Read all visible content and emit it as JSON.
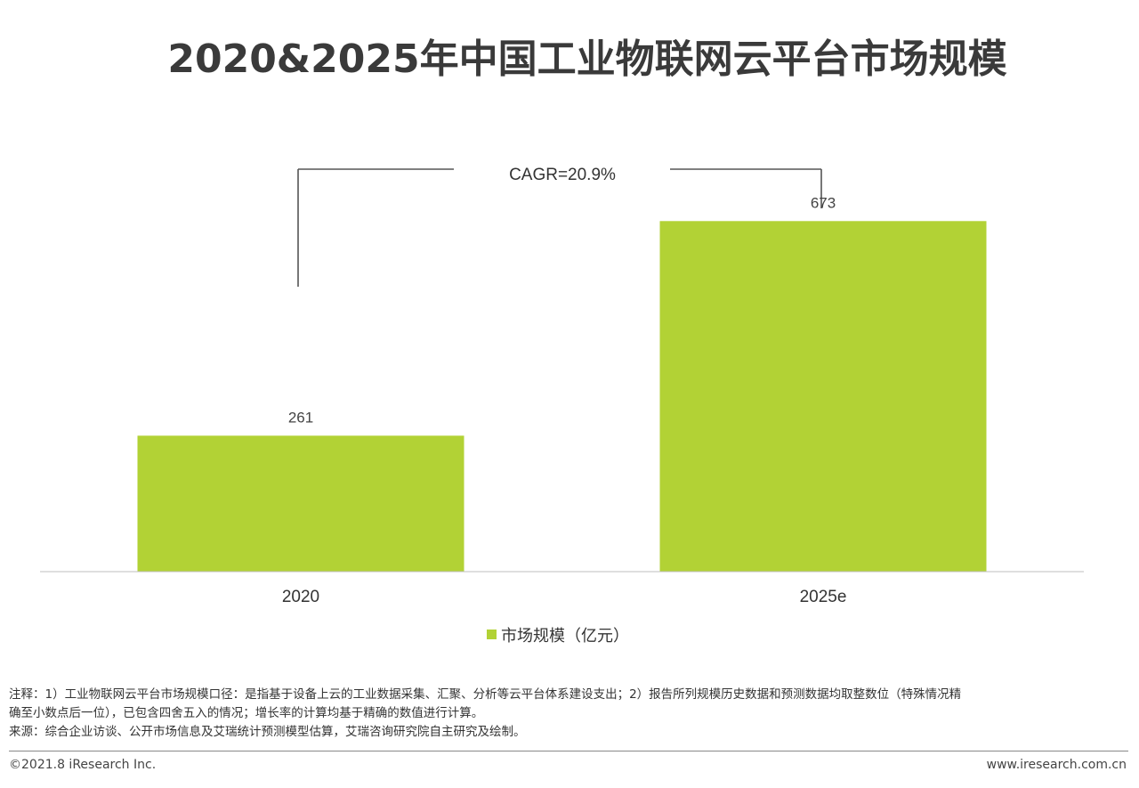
{
  "title": "2020&2025年中国工业物联网云平台市场规模",
  "cagr_label": "CAGR=20.9%",
  "colors": {
    "bar": "#b2d235",
    "axis": "#bfbfbf",
    "bracket": "#555555",
    "text": "#333333"
  },
  "chart_data": {
    "type": "bar",
    "categories": [
      "2020",
      "2025e"
    ],
    "series": [
      {
        "name": "市场规模（亿元）",
        "values": [
          261,
          673
        ]
      }
    ],
    "data_labels": [
      "261",
      "673"
    ],
    "title": "2020&2025年中国工业物联网云平台市场规模",
    "xlabel": "",
    "ylabel": "",
    "ylim": [
      0,
      800
    ],
    "grid": false,
    "legend": "bottom-center",
    "annotation": "CAGR=20.9%"
  },
  "notes": {
    "line1": "注释：1）工业物联网云平台市场规模口径：是指基于设备上云的工业数据采集、汇聚、分析等云平台体系建设支出；2）报告所列规模历史数据和预测数据均取整数位（特殊情况精",
    "line2": "确至小数点后一位），已包含四舍五入的情况；增长率的计算均基于精确的数值进行计算。",
    "line3": "来源：综合企业访谈、公开市场信息及艾瑞统计预测模型估算，艾瑞咨询研究院自主研究及绘制。"
  },
  "footer": {
    "copyright": "©2021.8 iResearch Inc.",
    "website": "www.iresearch.com.cn"
  }
}
